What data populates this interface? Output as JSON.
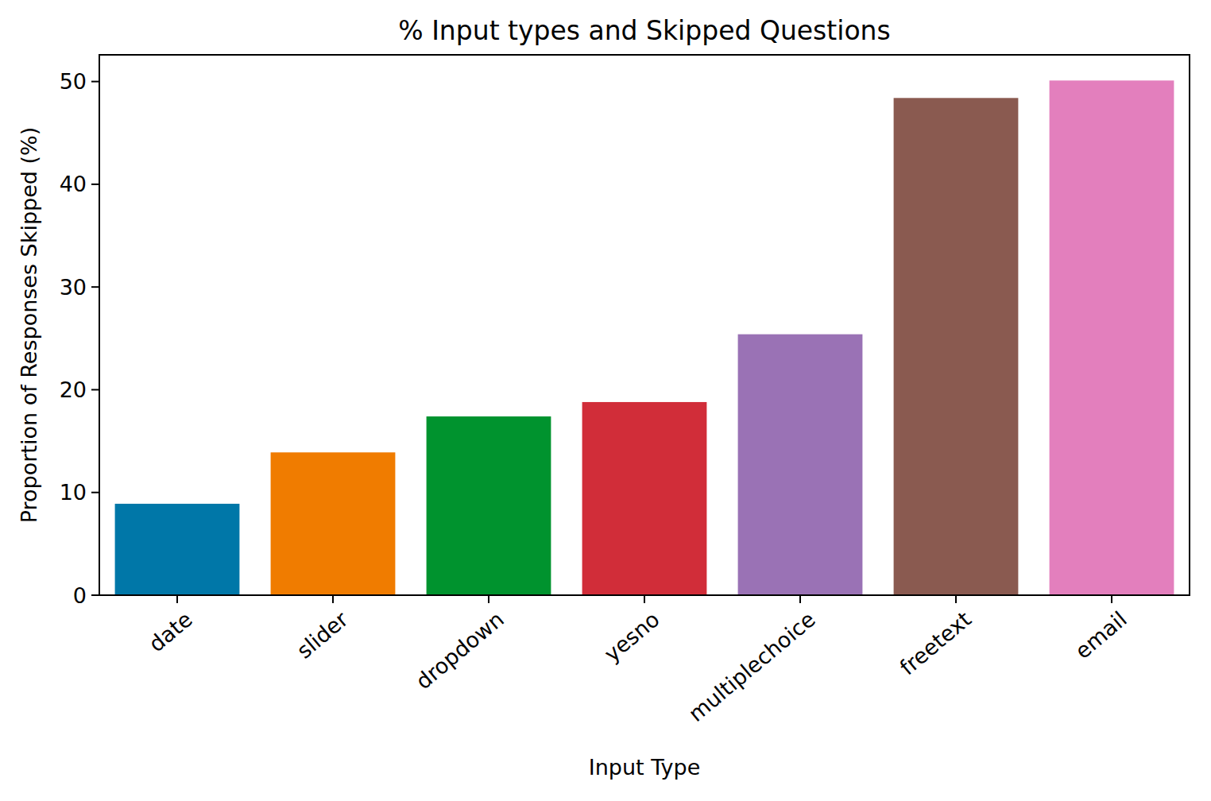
{
  "chart_data": {
    "type": "bar",
    "title": "% Input types and Skipped Questions",
    "x_label": "Input Type",
    "y_label": "Proportion of Responses Skipped (%)",
    "categories": [
      "date",
      "slider",
      "dropdown",
      "yesno",
      "multiplechoice",
      "freetext",
      "email"
    ],
    "values": [
      8.9,
      13.9,
      17.4,
      18.8,
      25.4,
      48.4,
      50.1
    ],
    "colors": [
      "#0077a8",
      "#f07c00",
      "#00932e",
      "#d12d39",
      "#9a72b5",
      "#8a5a50",
      "#e37fbd"
    ],
    "ylim": [
      0,
      52.6
    ],
    "yticks": [
      0,
      10,
      20,
      30,
      40,
      50
    ],
    "grid": false
  }
}
